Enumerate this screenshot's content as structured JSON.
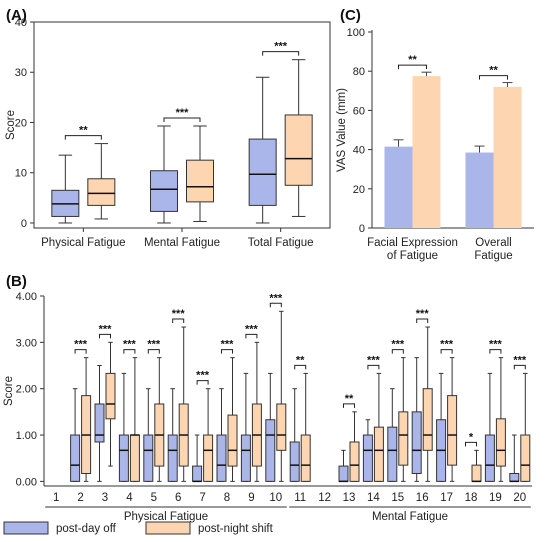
{
  "colors": {
    "day_off": "#aab6ea",
    "night_shift": "#fdd5b1",
    "stroke": "#333333"
  },
  "legend": {
    "day_off_label": "post-day off",
    "night_shift_label": "post-night shift"
  },
  "chart_data": [
    {
      "panel": "(A)",
      "type": "box",
      "ylabel": "Score",
      "ylim": [
        -1,
        40
      ],
      "yticks": [
        0,
        10,
        20,
        30,
        40
      ],
      "categories": [
        "Physical Fatigue",
        "Mental Fatigue",
        "Total Fatigue"
      ],
      "series": [
        {
          "name": "post-day off",
          "boxes": [
            {
              "min": 0,
              "q1": 1.3,
              "median": 3.8,
              "q3": 6.5,
              "max": 13.5
            },
            {
              "min": 0,
              "q1": 2.3,
              "median": 6.7,
              "q3": 10.4,
              "max": 19.3
            },
            {
              "min": 0,
              "q1": 3.5,
              "median": 9.7,
              "q3": 16.7,
              "max": 29.0
            }
          ]
        },
        {
          "name": "post-night shift",
          "boxes": [
            {
              "min": 0.8,
              "q1": 3.5,
              "median": 5.9,
              "q3": 8.8,
              "max": 15.8
            },
            {
              "min": 0.3,
              "q1": 4.2,
              "median": 7.2,
              "q3": 12.5,
              "max": 19.3
            },
            {
              "min": 1.3,
              "q1": 7.5,
              "median": 12.8,
              "q3": 21.5,
              "max": 32.5
            }
          ]
        }
      ],
      "significance": [
        "**",
        "***",
        "***"
      ]
    },
    {
      "panel": "(C)",
      "type": "bar",
      "ylabel": "VAS Value (mm)",
      "ylim": [
        0,
        100
      ],
      "yticks": [
        0,
        20,
        40,
        60,
        80,
        100
      ],
      "categories": [
        [
          "Facial Expression",
          "of Fatigue"
        ],
        [
          "Overall",
          "Fatigue"
        ]
      ],
      "series": [
        {
          "name": "post-day off",
          "values": [
            41.5,
            38.5
          ],
          "errors": [
            3.5,
            3.3
          ]
        },
        {
          "name": "post-night shift",
          "values": [
            77.5,
            72.0
          ],
          "errors": [
            2.0,
            2.2
          ]
        }
      ],
      "significance": [
        "**",
        "**"
      ]
    },
    {
      "panel": "(B)",
      "type": "box",
      "ylabel": "Score",
      "ylim": [
        -0.1,
        4.0
      ],
      "yticks": [
        "0.00",
        "1.00",
        "2.00",
        "3.00",
        "4.00"
      ],
      "categories": [
        "1",
        "2",
        "3",
        "4",
        "5",
        "6",
        "7",
        "8",
        "9",
        "10",
        "11",
        "12",
        "13",
        "14",
        "15",
        "16",
        "17",
        "18",
        "19",
        "20"
      ],
      "groups": [
        {
          "label": "Physical Fatigue",
          "from": 1,
          "to": 10
        },
        {
          "label": "Mental Fatigue",
          "from": 11,
          "to": 20
        }
      ],
      "series": [
        {
          "name": "post-day off",
          "boxes": [
            {
              "min": 0,
              "q1": 0,
              "median": 0,
              "q3": 0,
              "max": 0
            },
            {
              "min": 0,
              "q1": 0,
              "median": 0.35,
              "q3": 1.0,
              "max": 2.0
            },
            {
              "min": 0,
              "q1": 0.85,
              "median": 1.0,
              "q3": 1.67,
              "max": 2.5
            },
            {
              "min": 0,
              "q1": 0,
              "median": 0.67,
              "q3": 1.0,
              "max": 2.33
            },
            {
              "min": 0,
              "q1": 0,
              "median": 0.67,
              "q3": 1.0,
              "max": 2.0
            },
            {
              "min": 0,
              "q1": 0,
              "median": 0.67,
              "q3": 1.0,
              "max": 2.0
            },
            {
              "min": 0,
              "q1": 0,
              "median": 0,
              "q3": 0.33,
              "max": 1.0
            },
            {
              "min": 0,
              "q1": 0,
              "median": 0.35,
              "q3": 1.0,
              "max": 2.0
            },
            {
              "min": 0,
              "q1": 0,
              "median": 0.67,
              "q3": 1.0,
              "max": 2.33
            },
            {
              "min": 0,
              "q1": 0,
              "median": 1.0,
              "q3": 1.33,
              "max": 2.33
            },
            {
              "min": 0,
              "q1": 0,
              "median": 0.35,
              "q3": 0.85,
              "max": 2.0
            },
            {
              "min": 0,
              "q1": 0,
              "median": 0,
              "q3": 0,
              "max": 0
            },
            {
              "min": 0,
              "q1": 0,
              "median": 0,
              "q3": 0.33,
              "max": 0.67
            },
            {
              "min": 0,
              "q1": 0,
              "median": 0.67,
              "q3": 1.0,
              "max": 1.33
            },
            {
              "min": 0,
              "q1": 0,
              "median": 0.67,
              "q3": 1.17,
              "max": 2.0
            },
            {
              "min": 0,
              "q1": 0.17,
              "median": 0.67,
              "q3": 1.5,
              "max": 2.67
            },
            {
              "min": 0,
              "q1": 0,
              "median": 0.67,
              "q3": 1.33,
              "max": 2.33
            },
            {
              "min": 0,
              "q1": 0,
              "median": 0,
              "q3": 0,
              "max": 0
            },
            {
              "min": 0,
              "q1": 0,
              "median": 0.35,
              "q3": 1.0,
              "max": 2.33
            },
            {
              "min": 0,
              "q1": 0,
              "median": 0,
              "q3": 0.17,
              "max": 1.0
            }
          ]
        },
        {
          "name": "post-night shift",
          "boxes": [
            {
              "min": 0,
              "q1": 0,
              "median": 0,
              "q3": 0,
              "max": 0
            },
            {
              "min": 0,
              "q1": 0.17,
              "median": 1.0,
              "q3": 1.85,
              "max": 2.67
            },
            {
              "min": 0.33,
              "q1": 1.35,
              "median": 1.67,
              "q3": 2.33,
              "max": 3.0
            },
            {
              "min": 0,
              "q1": 0,
              "median": 1.0,
              "q3": 1.0,
              "max": 2.67
            },
            {
              "min": 0,
              "q1": 0.33,
              "median": 1.0,
              "q3": 1.67,
              "max": 2.67
            },
            {
              "min": 0,
              "q1": 0.33,
              "median": 1.0,
              "q3": 1.67,
              "max": 3.33
            },
            {
              "min": 0,
              "q1": 0,
              "median": 0.67,
              "q3": 1.0,
              "max": 2.0
            },
            {
              "min": 0,
              "q1": 0.33,
              "median": 0.67,
              "q3": 1.43,
              "max": 2.67
            },
            {
              "min": 0,
              "q1": 0.33,
              "median": 1.0,
              "q3": 1.67,
              "max": 3.0
            },
            {
              "min": 0,
              "q1": 0.67,
              "median": 1.0,
              "q3": 1.67,
              "max": 3.67
            },
            {
              "min": 0,
              "q1": 0,
              "median": 0.35,
              "q3": 1.0,
              "max": 2.33
            },
            {
              "min": 0,
              "q1": 0,
              "median": 0,
              "q3": 0,
              "max": 0
            },
            {
              "min": 0,
              "q1": 0,
              "median": 0.35,
              "q3": 0.85,
              "max": 1.5
            },
            {
              "min": 0,
              "q1": 0,
              "median": 0.67,
              "q3": 1.17,
              "max": 2.33
            },
            {
              "min": 0,
              "q1": 0.35,
              "median": 1.0,
              "q3": 1.5,
              "max": 2.67
            },
            {
              "min": 0,
              "q1": 0.67,
              "median": 1.0,
              "q3": 2.0,
              "max": 3.33
            },
            {
              "min": 0,
              "q1": 0.35,
              "median": 1.0,
              "q3": 1.85,
              "max": 2.67
            },
            {
              "min": 0,
              "q1": 0,
              "median": 0,
              "q3": 0.35,
              "max": 0.67
            },
            {
              "min": 0,
              "q1": 0.33,
              "median": 0.67,
              "q3": 1.35,
              "max": 2.67
            },
            {
              "min": 0,
              "q1": 0,
              "median": 0.35,
              "q3": 1.0,
              "max": 2.33
            }
          ]
        }
      ],
      "significance": [
        "",
        "***",
        "***",
        "***",
        "***",
        "***",
        "***",
        "***",
        "***",
        "***",
        "**",
        "",
        "**",
        "***",
        "***",
        "***",
        "***",
        "*",
        "***",
        "***"
      ]
    }
  ]
}
